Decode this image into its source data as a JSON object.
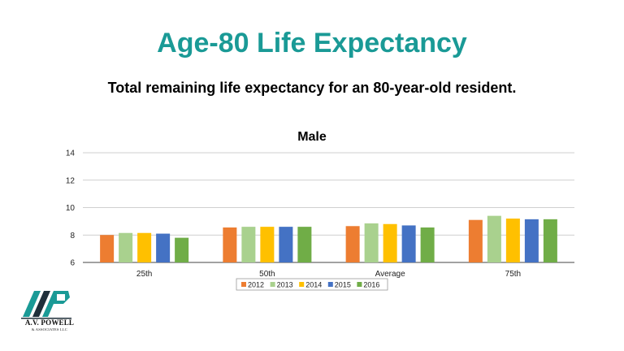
{
  "slide": {
    "title": "Age-80 Life Expectancy",
    "subtitle": "Total remaining life expectancy for an 80-year-old resident."
  },
  "logo": {
    "name_line": "A.V. POWELL",
    "sub_line": "& ASSOCIATES LLC",
    "colors": {
      "teal": "#1a9a96",
      "dark": "#1f2f3a"
    }
  },
  "chart_data": {
    "type": "bar",
    "title": "Male",
    "xlabel": "",
    "ylabel": "",
    "ylim": [
      6,
      14
    ],
    "yticks": [
      6,
      8,
      10,
      12,
      14
    ],
    "grid": true,
    "legend_position": "bottom",
    "categories": [
      "25th",
      "50th",
      "Average",
      "75th"
    ],
    "series": [
      {
        "name": "2012",
        "color": "#ed7d31",
        "values": [
          8.0,
          8.55,
          8.65,
          9.1
        ]
      },
      {
        "name": "2013",
        "color": "#a9d18e",
        "values": [
          8.15,
          8.6,
          8.85,
          9.4
        ]
      },
      {
        "name": "2014",
        "color": "#ffc000",
        "values": [
          8.15,
          8.6,
          8.8,
          9.2
        ]
      },
      {
        "name": "2015",
        "color": "#4472c4",
        "values": [
          8.1,
          8.6,
          8.7,
          9.15
        ]
      },
      {
        "name": "2016",
        "color": "#70ad47",
        "values": [
          7.8,
          8.6,
          8.55,
          9.15
        ]
      }
    ]
  }
}
